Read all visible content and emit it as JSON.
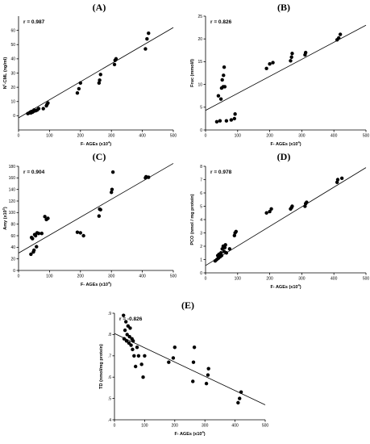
{
  "figure": {
    "panels_order": [
      "A",
      "B",
      "C",
      "D",
      "E"
    ]
  },
  "chart_data": [
    {
      "id": "A",
      "type": "scatter",
      "title": "(A)",
      "annotation": "r = 0.987",
      "xlabel": "F- AGEs (x10",
      "xlabel_sup": "4",
      "xlabel_end": ")",
      "ylabel_pre": "N",
      "ylabel_sup": "ε",
      "ylabel_post": "-CML (ng/ml)",
      "xlim": [
        0,
        500
      ],
      "ylim": [
        -10,
        70
      ],
      "xticks": [
        0,
        100,
        200,
        300,
        400,
        500
      ],
      "yticks": [
        0,
        10,
        20,
        30,
        40,
        50,
        60
      ],
      "grid": false,
      "fit_line": [
        [
          0,
          -1.5
        ],
        [
          500,
          62
        ]
      ],
      "points": [
        [
          30,
          1.5
        ],
        [
          35,
          2
        ],
        [
          38,
          2.5
        ],
        [
          40,
          2
        ],
        [
          42,
          3
        ],
        [
          45,
          2.5
        ],
        [
          48,
          3
        ],
        [
          50,
          4
        ],
        [
          55,
          3.5
        ],
        [
          60,
          4
        ],
        [
          65,
          5
        ],
        [
          80,
          5
        ],
        [
          90,
          7
        ],
        [
          92,
          8
        ],
        [
          95,
          9
        ],
        [
          190,
          16
        ],
        [
          195,
          19
        ],
        [
          200,
          23
        ],
        [
          260,
          23
        ],
        [
          262,
          25
        ],
        [
          265,
          29
        ],
        [
          310,
          36
        ],
        [
          312,
          39
        ],
        [
          315,
          40
        ],
        [
          410,
          47
        ],
        [
          415,
          54
        ],
        [
          420,
          58
        ]
      ]
    },
    {
      "id": "B",
      "type": "scatter",
      "title": "(B)",
      "annotation": "r = 0.826",
      "xlabel": "F- AGEs (x10",
      "xlabel_sup": "4",
      "xlabel_end": ")",
      "ylabel_pre": "Fruc (mmol/l)",
      "ylabel_sup": "",
      "ylabel_post": "",
      "xlim": [
        0,
        500
      ],
      "ylim": [
        0,
        25
      ],
      "xticks": [
        0,
        100,
        200,
        300,
        400,
        500
      ],
      "yticks": [
        0,
        5,
        10,
        15,
        20,
        25
      ],
      "grid": false,
      "fit_line": [
        [
          0,
          4.3
        ],
        [
          500,
          23
        ]
      ],
      "points": [
        [
          35,
          1.8
        ],
        [
          40,
          7.5
        ],
        [
          45,
          2
        ],
        [
          48,
          6.8
        ],
        [
          50,
          9.2
        ],
        [
          52,
          11
        ],
        [
          55,
          9.5
        ],
        [
          56,
          12
        ],
        [
          58,
          13.8
        ],
        [
          60,
          9.5
        ],
        [
          65,
          2
        ],
        [
          80,
          2.2
        ],
        [
          90,
          2.5
        ],
        [
          92,
          3.5
        ],
        [
          190,
          13.5
        ],
        [
          200,
          14.5
        ],
        [
          210,
          14.8
        ],
        [
          265,
          15.2
        ],
        [
          268,
          16
        ],
        [
          270,
          16.8
        ],
        [
          310,
          16.5
        ],
        [
          312,
          17
        ],
        [
          410,
          19.8
        ],
        [
          415,
          20.2
        ],
        [
          420,
          21
        ]
      ]
    },
    {
      "id": "C",
      "type": "scatter",
      "title": "(C)",
      "annotation": "r = 0.904",
      "xlabel": "F- AGEs (x10",
      "xlabel_sup": "4",
      "xlabel_end": ")",
      "ylabel_pre": "Amy (x10",
      "ylabel_sup": "2",
      "ylabel_post": ")",
      "xlim": [
        0,
        500
      ],
      "ylim": [
        0,
        180
      ],
      "xticks": [
        0,
        100,
        200,
        300,
        400,
        500
      ],
      "yticks": [
        0,
        20,
        40,
        60,
        80,
        100,
        120,
        140,
        160,
        180
      ],
      "grid": false,
      "fit_line": [
        [
          0,
          30
        ],
        [
          500,
          185
        ]
      ],
      "points": [
        [
          40,
          28
        ],
        [
          42,
          57
        ],
        [
          45,
          55
        ],
        [
          48,
          32
        ],
        [
          50,
          35
        ],
        [
          52,
          62
        ],
        [
          55,
          60
        ],
        [
          58,
          41
        ],
        [
          60,
          65
        ],
        [
          65,
          64
        ],
        [
          75,
          64
        ],
        [
          85,
          93
        ],
        [
          90,
          88
        ],
        [
          95,
          90
        ],
        [
          190,
          66
        ],
        [
          200,
          65
        ],
        [
          210,
          60
        ],
        [
          260,
          94
        ],
        [
          262,
          106
        ],
        [
          265,
          105
        ],
        [
          300,
          135
        ],
        [
          302,
          140
        ],
        [
          305,
          170
        ],
        [
          410,
          160
        ],
        [
          412,
          162
        ],
        [
          420,
          161
        ]
      ]
    },
    {
      "id": "D",
      "type": "scatter",
      "title": "(D)",
      "annotation": "r = 0.978",
      "xlabel": "F- AGEs (x10",
      "xlabel_sup": "4",
      "xlabel_end": ")",
      "ylabel_pre": "PCO (nmol / mg protein)",
      "ylabel_sup": "",
      "ylabel_post": "",
      "xlim": [
        0,
        500
      ],
      "ylim": [
        0,
        8
      ],
      "xticks": [
        0,
        100,
        200,
        300,
        400,
        500
      ],
      "yticks": [
        0,
        1,
        2,
        3,
        4,
        5,
        6,
        7,
        8
      ],
      "grid": false,
      "fit_line": [
        [
          0,
          0.55
        ],
        [
          500,
          7.9
        ]
      ],
      "points": [
        [
          30,
          0.9
        ],
        [
          35,
          1.0
        ],
        [
          38,
          1.3
        ],
        [
          40,
          1.1
        ],
        [
          42,
          1.4
        ],
        [
          45,
          1.2
        ],
        [
          48,
          1.5
        ],
        [
          50,
          1.3
        ],
        [
          52,
          1.8
        ],
        [
          55,
          2.0
        ],
        [
          58,
          1.6
        ],
        [
          60,
          1.9
        ],
        [
          62,
          2.1
        ],
        [
          65,
          1.5
        ],
        [
          75,
          1.8
        ],
        [
          90,
          2.8
        ],
        [
          92,
          3.0
        ],
        [
          95,
          3.1
        ],
        [
          190,
          4.5
        ],
        [
          200,
          4.6
        ],
        [
          205,
          4.8
        ],
        [
          265,
          4.8
        ],
        [
          268,
          4.9
        ],
        [
          270,
          5.0
        ],
        [
          310,
          5.0
        ],
        [
          312,
          5.2
        ],
        [
          315,
          5.3
        ],
        [
          410,
          6.8
        ],
        [
          412,
          7.0
        ],
        [
          425,
          7.1
        ]
      ]
    },
    {
      "id": "E",
      "type": "scatter",
      "title": "(E)",
      "annotation": "r = -0.826",
      "xlabel": "F- AGEs (x10",
      "xlabel_sup": "4",
      "xlabel_end": ")",
      "ylabel_pre": "TD (nmol/mg protein)",
      "ylabel_sup": "",
      "ylabel_post": "",
      "xlim": [
        0,
        500
      ],
      "ylim": [
        0.4,
        0.9
      ],
      "xticks": [
        0,
        100,
        200,
        300,
        400,
        500
      ],
      "yticks": [
        0.4,
        0.5,
        0.6,
        0.7,
        0.8,
        0.9
      ],
      "yticklabels": [
        ".4",
        ".5",
        ".6",
        ".7",
        ".8",
        ".9"
      ],
      "grid": false,
      "fit_line": [
        [
          0,
          0.805
        ],
        [
          500,
          0.47
        ]
      ],
      "points": [
        [
          30,
          0.89
        ],
        [
          32,
          0.78
        ],
        [
          35,
          0.82
        ],
        [
          38,
          0.86
        ],
        [
          40,
          0.77
        ],
        [
          42,
          0.8
        ],
        [
          45,
          0.84
        ],
        [
          48,
          0.76
        ],
        [
          50,
          0.79
        ],
        [
          52,
          0.83
        ],
        [
          55,
          0.75
        ],
        [
          58,
          0.78
        ],
        [
          60,
          0.73
        ],
        [
          62,
          0.77
        ],
        [
          65,
          0.7
        ],
        [
          70,
          0.65
        ],
        [
          75,
          0.74
        ],
        [
          80,
          0.7
        ],
        [
          90,
          0.66
        ],
        [
          95,
          0.6
        ],
        [
          100,
          0.7
        ],
        [
          180,
          0.67
        ],
        [
          195,
          0.69
        ],
        [
          200,
          0.74
        ],
        [
          260,
          0.58
        ],
        [
          262,
          0.67
        ],
        [
          265,
          0.74
        ],
        [
          305,
          0.57
        ],
        [
          310,
          0.61
        ],
        [
          312,
          0.64
        ],
        [
          410,
          0.48
        ],
        [
          415,
          0.5
        ],
        [
          420,
          0.53
        ]
      ]
    }
  ]
}
